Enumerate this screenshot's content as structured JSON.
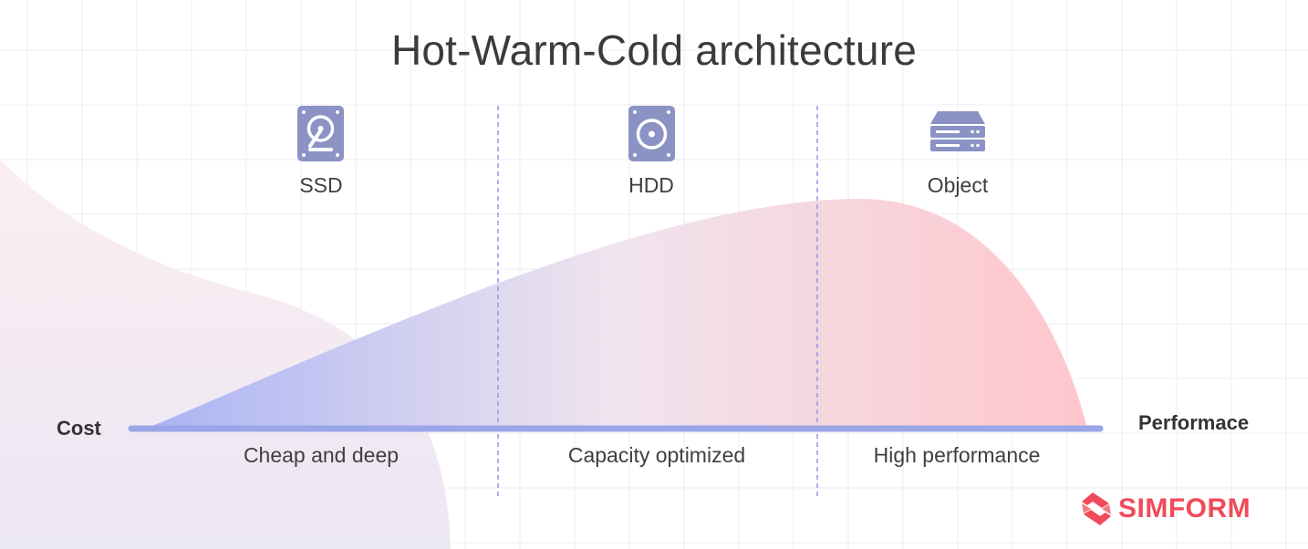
{
  "title": "Hot-Warm-Cold architecture",
  "tiers": [
    {
      "name": "SSD",
      "icon": "ssd-drive-icon",
      "description": "Cheap and deep"
    },
    {
      "name": "HDD",
      "icon": "hdd-drive-icon",
      "description": "Capacity optimized"
    },
    {
      "name": "Object",
      "icon": "object-storage-server-icon",
      "description": "High performance"
    }
  ],
  "axis": {
    "left_label": "Cost",
    "right_label": "Performace"
  },
  "brand": {
    "name": "SIMFORM",
    "icon": "simform-logo-icon"
  },
  "colors": {
    "icon": "#8a93c4",
    "axis_line": "#9aa6e8",
    "curve_start": "#aab4f4",
    "curve_end": "#ffc6cc",
    "brand": "#ef4b5a",
    "divider": "#8d9be0"
  }
}
